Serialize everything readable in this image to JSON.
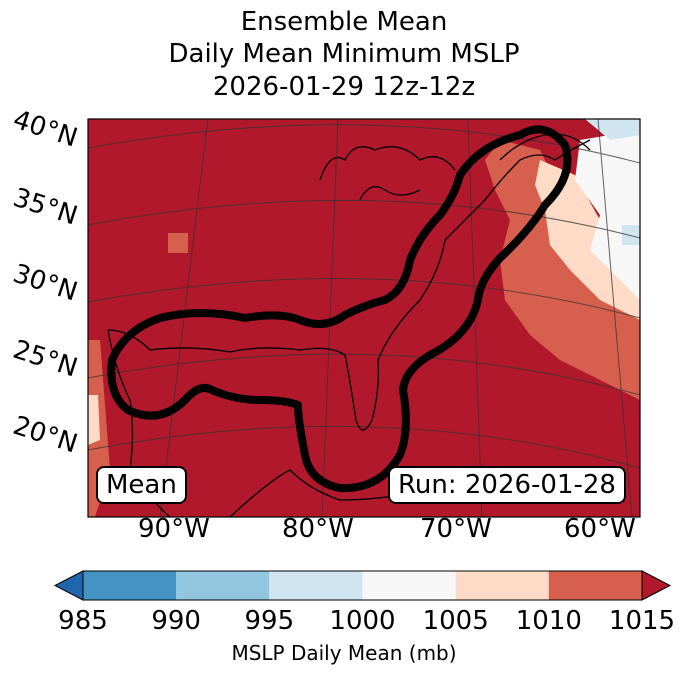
{
  "title": {
    "line1": "Ensemble Mean",
    "line2": "Daily Mean Minimum MSLP",
    "line3": "2026-01-29 12z-12z"
  },
  "map": {
    "lat_labels": [
      "40°N",
      "35°N",
      "30°N",
      "25°N",
      "20°N"
    ],
    "lon_labels": [
      "90°W",
      "80°W",
      "70°W",
      "60°W"
    ],
    "mean_label": "Mean",
    "run_label": "Run: 2026-01-28"
  },
  "colorbar": {
    "ticks": [
      "985",
      "990",
      "995",
      "1000",
      "1005",
      "1010",
      "1015"
    ],
    "label": "MSLP Daily Mean (mb)",
    "colors": [
      "#2166ac",
      "#4393c3",
      "#92c5de",
      "#d1e5f0",
      "#f7f7f7",
      "#fddbc7",
      "#d6604d",
      "#b2182b"
    ]
  }
}
